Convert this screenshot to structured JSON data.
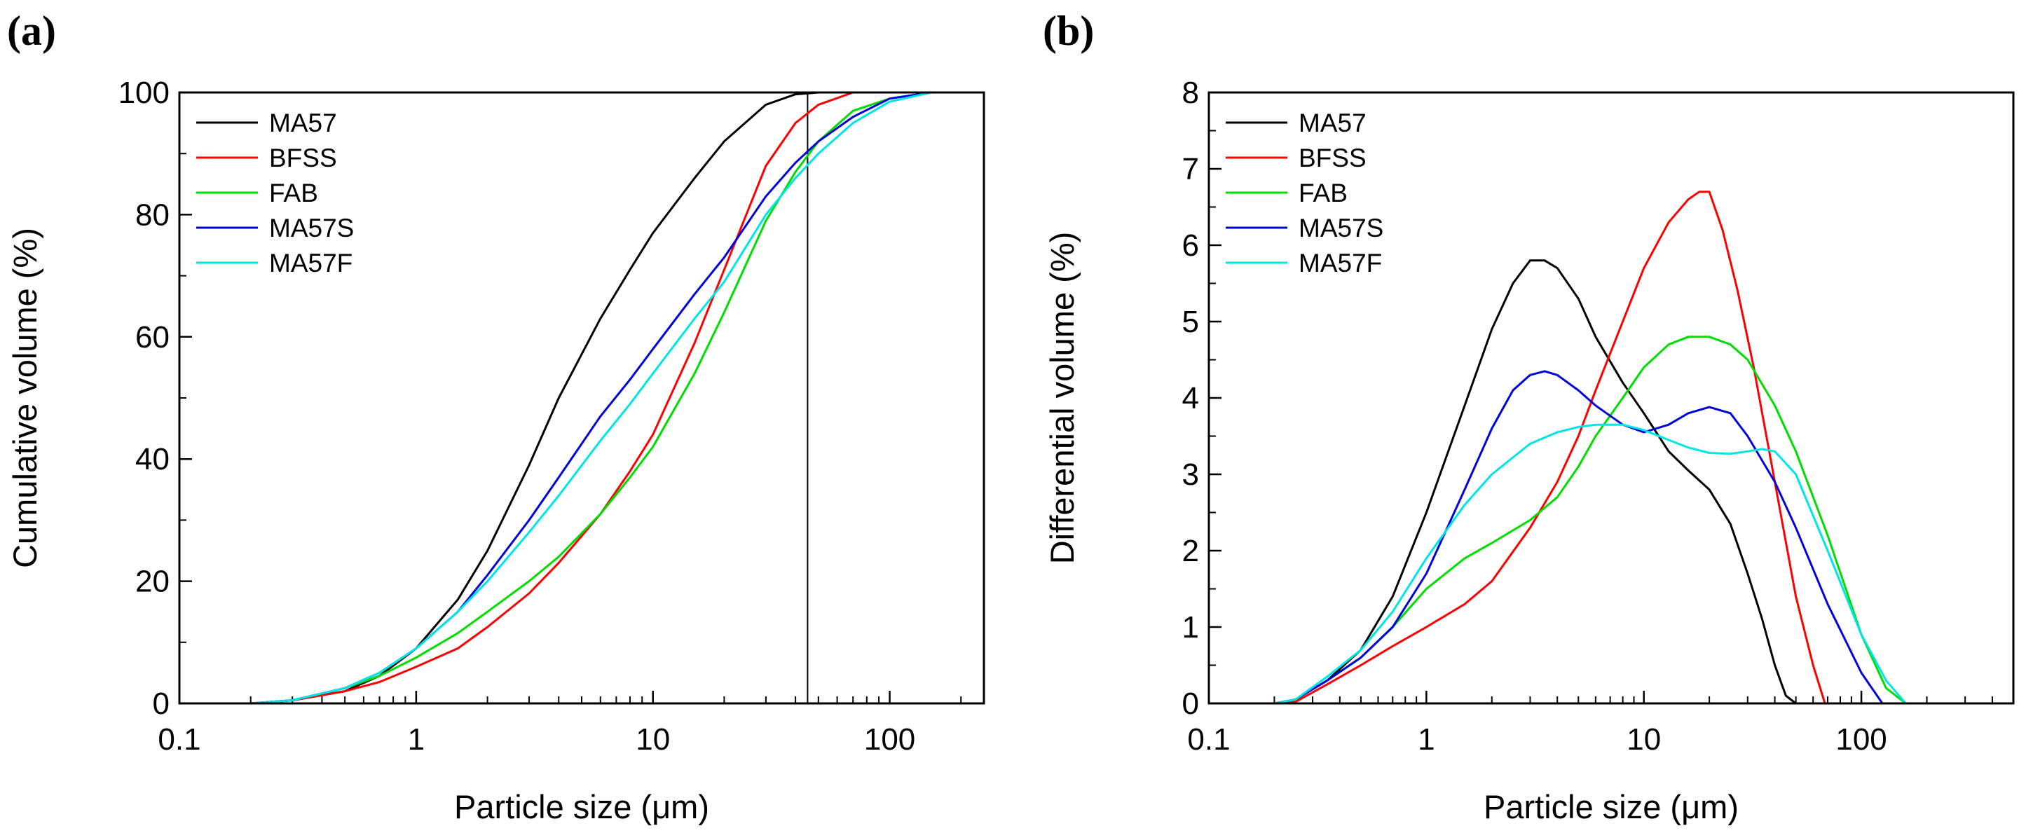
{
  "panels": [
    {
      "label": "(a)"
    },
    {
      "label": "(b)"
    }
  ],
  "chart_data": [
    {
      "type": "line",
      "panel": "(a)",
      "title": "",
      "xlabel": "Particle size (μm)",
      "ylabel": "Cumulative volume (%)",
      "xscale": "log",
      "xlim": [
        0.1,
        250
      ],
      "ylim": [
        0,
        100
      ],
      "xticks": [
        0.1,
        1,
        10,
        100
      ],
      "xtick_labels": [
        "0.1",
        "1",
        "10",
        "100"
      ],
      "yticks": [
        0,
        20,
        40,
        60,
        80,
        100
      ],
      "ytick_labels": [
        "0",
        "20",
        "40",
        "60",
        "80",
        "100"
      ],
      "legend_position": "top-left",
      "annotations": [
        {
          "type": "vertical-line",
          "x": 45
        }
      ],
      "series": [
        {
          "name": "MA57",
          "color": "#000000",
          "x": [
            0.1,
            0.2,
            0.3,
            0.5,
            0.7,
            1,
            1.5,
            2,
            3,
            4,
            6,
            8,
            10,
            15,
            20,
            30,
            40,
            50,
            100,
            250
          ],
          "y": [
            0,
            0,
            0.5,
            2,
            4.5,
            9,
            17,
            25,
            39,
            50,
            63,
            71,
            77,
            86,
            92,
            98,
            99.7,
            100,
            100,
            100
          ]
        },
        {
          "name": "BFSS",
          "color": "#ff0000",
          "x": [
            0.1,
            0.2,
            0.3,
            0.5,
            0.7,
            1,
            1.5,
            2,
            3,
            4,
            6,
            8,
            10,
            15,
            20,
            30,
            40,
            50,
            70,
            100,
            250
          ],
          "y": [
            0,
            0,
            0.5,
            2,
            3.5,
            6,
            9,
            12.5,
            18,
            23,
            31,
            38,
            44,
            59,
            71,
            88,
            95,
            98,
            100,
            100,
            100
          ]
        },
        {
          "name": "FAB",
          "color": "#00dd00",
          "x": [
            0.1,
            0.2,
            0.3,
            0.5,
            0.7,
            1,
            1.5,
            2,
            3,
            4,
            6,
            8,
            10,
            15,
            20,
            30,
            40,
            50,
            70,
            100,
            150,
            250
          ],
          "y": [
            0,
            0,
            0.5,
            2.5,
            4.5,
            7.5,
            11.5,
            15,
            20,
            24,
            31,
            37,
            42,
            54,
            64,
            79,
            87,
            92,
            97,
            99,
            100,
            100
          ]
        },
        {
          "name": "MA57S",
          "color": "#0000dd",
          "x": [
            0.1,
            0.2,
            0.3,
            0.5,
            0.7,
            1,
            1.5,
            2,
            3,
            4,
            6,
            8,
            10,
            15,
            20,
            30,
            40,
            50,
            70,
            100,
            150,
            250
          ],
          "y": [
            0,
            0,
            0.5,
            2.5,
            5,
            9,
            15,
            21,
            30,
            37,
            47,
            53,
            58,
            67,
            73,
            83,
            88.5,
            92,
            96,
            99,
            100,
            100
          ]
        },
        {
          "name": "MA57F",
          "color": "#00e5e5",
          "x": [
            0.1,
            0.2,
            0.3,
            0.5,
            0.7,
            1,
            1.5,
            2,
            3,
            4,
            6,
            8,
            10,
            15,
            20,
            30,
            40,
            50,
            70,
            100,
            150,
            250
          ],
          "y": [
            0,
            0,
            0.5,
            2.5,
            5,
            9,
            15,
            20,
            28,
            34,
            43,
            49,
            54,
            63,
            69,
            80,
            86,
            90,
            95,
            98.5,
            100,
            100
          ]
        }
      ]
    },
    {
      "type": "line",
      "panel": "(b)",
      "title": "",
      "xlabel": "Particle size (μm)",
      "ylabel": "Differential volume (%)",
      "xscale": "log",
      "xlim": [
        0.1,
        500
      ],
      "ylim": [
        0,
        8
      ],
      "xticks": [
        0.1,
        1,
        10,
        100
      ],
      "xtick_labels": [
        "0.1",
        "1",
        "10",
        "100"
      ],
      "yticks": [
        0,
        1,
        2,
        3,
        4,
        5,
        6,
        7,
        8
      ],
      "ytick_labels": [
        "0",
        "1",
        "2",
        "3",
        "4",
        "5",
        "6",
        "7",
        "8"
      ],
      "legend_position": "top-left",
      "series": [
        {
          "name": "MA57",
          "color": "#000000",
          "x": [
            0.1,
            0.2,
            0.25,
            0.35,
            0.5,
            0.7,
            1,
            1.5,
            2,
            2.5,
            3,
            3.5,
            4,
            5,
            6,
            8,
            10,
            13,
            16,
            20,
            25,
            30,
            35,
            40,
            45,
            50,
            500
          ],
          "y": [
            0,
            0,
            0.05,
            0.3,
            0.7,
            1.4,
            2.5,
            3.9,
            4.9,
            5.5,
            5.8,
            5.8,
            5.7,
            5.3,
            4.8,
            4.2,
            3.8,
            3.3,
            3.05,
            2.8,
            2.35,
            1.7,
            1.1,
            0.5,
            0.1,
            0,
            0
          ]
        },
        {
          "name": "BFSS",
          "color": "#ff0000",
          "x": [
            0.1,
            0.2,
            0.25,
            0.35,
            0.5,
            0.7,
            1,
            1.5,
            2,
            3,
            4,
            5,
            6,
            8,
            10,
            13,
            16,
            18,
            20,
            23,
            27,
            32,
            40,
            50,
            60,
            68,
            500
          ],
          "y": [
            0,
            0,
            0.02,
            0.25,
            0.5,
            0.75,
            1.0,
            1.3,
            1.6,
            2.3,
            2.9,
            3.5,
            4.1,
            5.0,
            5.7,
            6.3,
            6.6,
            6.7,
            6.7,
            6.2,
            5.4,
            4.4,
            2.9,
            1.4,
            0.5,
            0,
            0
          ]
        },
        {
          "name": "FAB",
          "color": "#00dd00",
          "x": [
            0.1,
            0.2,
            0.25,
            0.35,
            0.5,
            0.7,
            1,
            1.5,
            2,
            3,
            4,
            5,
            6,
            8,
            10,
            13,
            16,
            20,
            25,
            30,
            40,
            50,
            70,
            100,
            130,
            160,
            500
          ],
          "y": [
            0,
            0,
            0.05,
            0.3,
            0.6,
            1.0,
            1.5,
            1.9,
            2.1,
            2.4,
            2.7,
            3.1,
            3.5,
            4.0,
            4.4,
            4.7,
            4.8,
            4.8,
            4.7,
            4.5,
            3.9,
            3.3,
            2.2,
            0.9,
            0.2,
            0,
            0
          ]
        },
        {
          "name": "MA57S",
          "color": "#0000dd",
          "x": [
            0.1,
            0.2,
            0.25,
            0.35,
            0.5,
            0.7,
            1,
            1.5,
            2,
            2.5,
            3,
            3.5,
            4,
            5,
            6,
            8,
            10,
            13,
            16,
            20,
            25,
            30,
            40,
            50,
            70,
            100,
            125,
            500
          ],
          "y": [
            0,
            0,
            0.05,
            0.3,
            0.6,
            1.0,
            1.7,
            2.8,
            3.6,
            4.1,
            4.3,
            4.35,
            4.3,
            4.1,
            3.9,
            3.65,
            3.55,
            3.65,
            3.8,
            3.88,
            3.8,
            3.5,
            2.9,
            2.3,
            1.3,
            0.4,
            0,
            0
          ]
        },
        {
          "name": "MA57F",
          "color": "#00e5e5",
          "x": [
            0.1,
            0.2,
            0.25,
            0.35,
            0.5,
            0.7,
            1,
            1.5,
            2,
            3,
            4,
            5,
            6,
            8,
            10,
            13,
            16,
            20,
            25,
            30,
            35,
            40,
            50,
            70,
            100,
            130,
            160,
            500
          ],
          "y": [
            0,
            0,
            0.05,
            0.35,
            0.7,
            1.2,
            1.9,
            2.6,
            3.0,
            3.4,
            3.55,
            3.62,
            3.65,
            3.65,
            3.58,
            3.45,
            3.35,
            3.28,
            3.27,
            3.3,
            3.33,
            3.3,
            3.0,
            2.0,
            0.9,
            0.3,
            0,
            0
          ]
        }
      ]
    }
  ]
}
